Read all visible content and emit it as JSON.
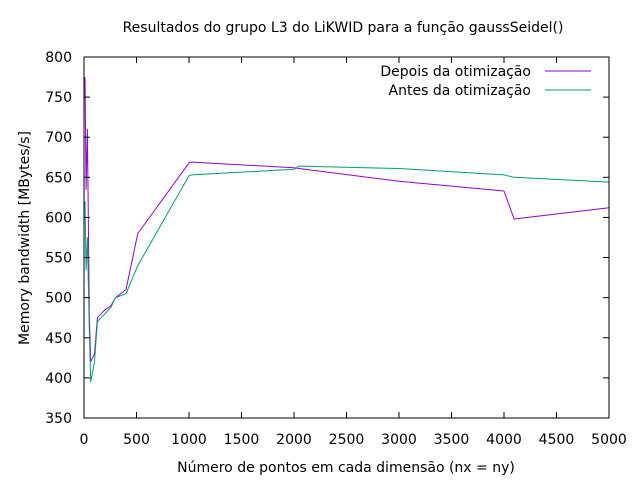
{
  "chart_data": {
    "type": "line",
    "title": "Resultados do grupo L3 do LiKWID para a função gaussSeidel()",
    "xlabel": "Número de pontos em cada dimensão (nx = ny)",
    "ylabel": "Memory bandwidth [MBytes/s]",
    "xlim": [
      0,
      5000
    ],
    "ylim": [
      350,
      800
    ],
    "xticks": [
      0,
      500,
      1000,
      1500,
      2000,
      2500,
      3000,
      3500,
      4000,
      4500,
      5000
    ],
    "yticks": [
      350,
      400,
      450,
      500,
      550,
      600,
      650,
      700,
      750,
      800
    ],
    "grid": false,
    "legend_position": "top-right",
    "series": [
      {
        "name": "Depois da otimização",
        "color": "#9400d3",
        "x": [
          10,
          20,
          32,
          50,
          64,
          100,
          128,
          200,
          256,
          300,
          400,
          512,
          1000,
          1024,
          2000,
          2048,
          3000,
          4000,
          4096,
          5000
        ],
        "y": [
          775,
          635,
          710,
          480,
          420,
          430,
          475,
          485,
          490,
          500,
          510,
          580,
          668,
          669,
          662,
          661,
          645,
          633,
          598,
          612
        ]
      },
      {
        "name": "Antes da otimização",
        "color": "#009e73",
        "x": [
          10,
          20,
          32,
          50,
          64,
          100,
          128,
          200,
          256,
          300,
          400,
          512,
          1000,
          1024,
          2000,
          2048,
          3000,
          4000,
          4096,
          5000
        ],
        "y": [
          620,
          535,
          575,
          460,
          395,
          420,
          470,
          480,
          488,
          500,
          505,
          540,
          652,
          653,
          660,
          664,
          661,
          653,
          650,
          644
        ]
      }
    ]
  }
}
